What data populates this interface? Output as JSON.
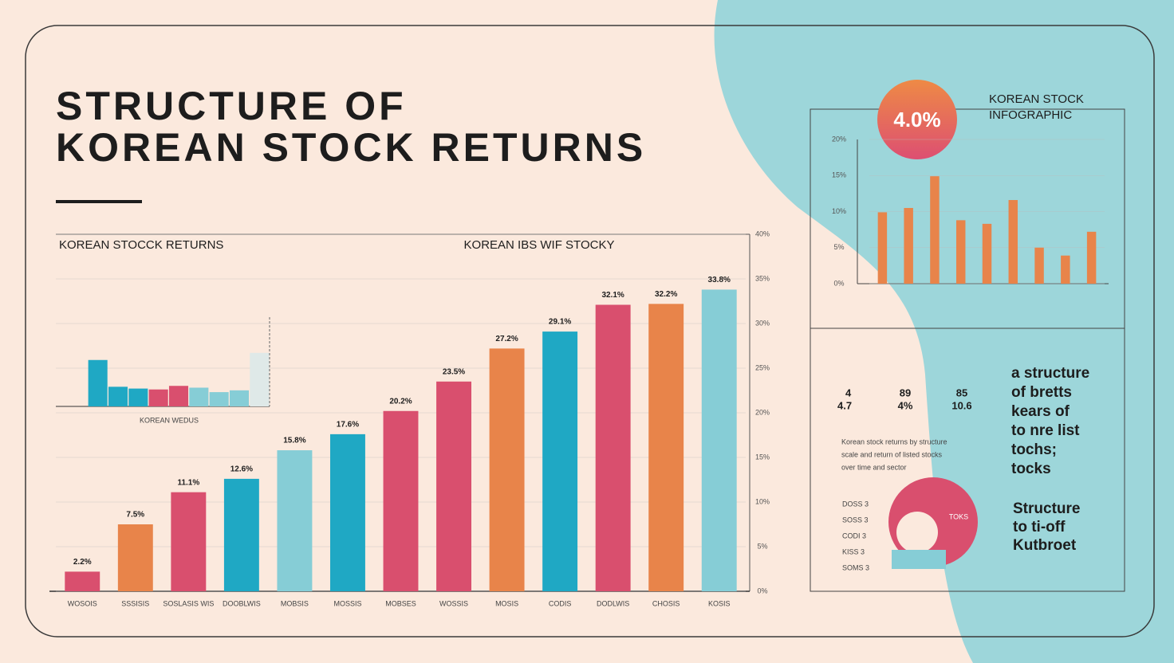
{
  "header": {
    "title_line1": "STRUCTURE OF",
    "title_line2": "KOREAN STOCK RETURNS"
  },
  "chart_data": [
    {
      "type": "bar",
      "title": "KOREAN STOCCK RETURNS",
      "subtitle": "KOREAN IBS WIF STOCKY",
      "categories": [
        "WOSOIS",
        "SSSISIS",
        "SOSLASIS WIS",
        "DOOBLWIS",
        "MOBSIS",
        "MOSSIS",
        "MOBSES",
        "WOSSIS",
        "MOSIS",
        "CODIS",
        "DODLWIS",
        "CHOSIS",
        "KOSIS"
      ],
      "values": [
        2.2,
        7.5,
        11.1,
        12.6,
        15.8,
        17.6,
        20.2,
        23.5,
        27.2,
        29.1,
        32.1,
        32.2,
        33.8
      ],
      "value_labels": [
        "2.2%",
        "7.5%",
        "11.1%",
        "12.6%",
        "15.8%",
        "17.6%",
        "20.2%",
        "23.5%",
        "27.2%",
        "29.1%",
        "32.1%",
        "32.2%",
        "33.8%"
      ],
      "colors": [
        "#d94f6e",
        "#e8844a",
        "#d94f6e",
        "#1fa8c4",
        "#86cdd6",
        "#1fa8c4",
        "#d94f6e",
        "#d94f6e",
        "#e8844a",
        "#1fa8c4",
        "#d94f6e",
        "#e8844a",
        "#86cdd6"
      ],
      "ylim": [
        0,
        40
      ],
      "yticks": [
        {
          "value": 0,
          "label": "0%"
        },
        {
          "value": 5,
          "label": "5%"
        },
        {
          "value": 10,
          "label": "10%"
        },
        {
          "value": 15,
          "label": "15%"
        },
        {
          "value": 20,
          "label": "20%"
        },
        {
          "value": 25,
          "label": "25%"
        },
        {
          "value": 30,
          "label": "30%"
        },
        {
          "value": 35,
          "label": "35%"
        },
        {
          "value": 40,
          "label": "40%"
        }
      ],
      "grid": true
    },
    {
      "type": "bar",
      "xlabel": "KOREAN WEDUS",
      "values": [
        5.2,
        2.2,
        2.0,
        1.9,
        2.3,
        2.1,
        1.6,
        1.8,
        6.0
      ],
      "colors": [
        "#1fa8c4",
        "#1fa8c4",
        "#1fa8c4",
        "#d94f6e",
        "#d94f6e",
        "#86cdd6",
        "#86cdd6",
        "#86cdd6",
        "#dfe9e8"
      ],
      "ylim": [
        0,
        10
      ]
    },
    {
      "type": "bar",
      "title": "KOREAN STOCK",
      "subtitle": "INFOGRAPHIC",
      "values": [
        9.9,
        10.5,
        14.9,
        8.8,
        8.3,
        11.6,
        5.0,
        3.9,
        7.2
      ],
      "colors": [
        "#e8844a",
        "#e8844a",
        "#e8844a",
        "#e8844a",
        "#e8844a",
        "#e8844a",
        "#e8844a",
        "#e8844a",
        "#e8844a"
      ],
      "ylim": [
        0,
        20
      ],
      "yticks": [
        {
          "value": 0,
          "label": "0%"
        },
        {
          "value": 5,
          "label": "5%"
        },
        {
          "value": 10,
          "label": "10%"
        },
        {
          "value": 15,
          "label": "15%"
        },
        {
          "value": 20,
          "label": "20%"
        }
      ],
      "grid": true
    }
  ],
  "panel": {
    "badge": "4.0%",
    "stats": [
      {
        "top": "4",
        "bottom": "4.7"
      },
      {
        "top": "89",
        "bottom": "4%"
      },
      {
        "top": "85",
        "bottom": "10.6"
      }
    ],
    "body": [
      "Korean stock returns by structure",
      "scale and return of listed stocks",
      "over time and sector"
    ],
    "bullet_lines": [
      "a structure",
      "of bretts",
      "kears of",
      "to nre list",
      "tochs;",
      "tocks"
    ],
    "legend": [
      "DOSS 3",
      "SOSS 3",
      "CODI 3",
      "KISS 3",
      "SOMS 3"
    ],
    "pie_label": "TOKS",
    "footer_lines": [
      "Structure",
      "to ti-off",
      "Kutbroet"
    ]
  }
}
